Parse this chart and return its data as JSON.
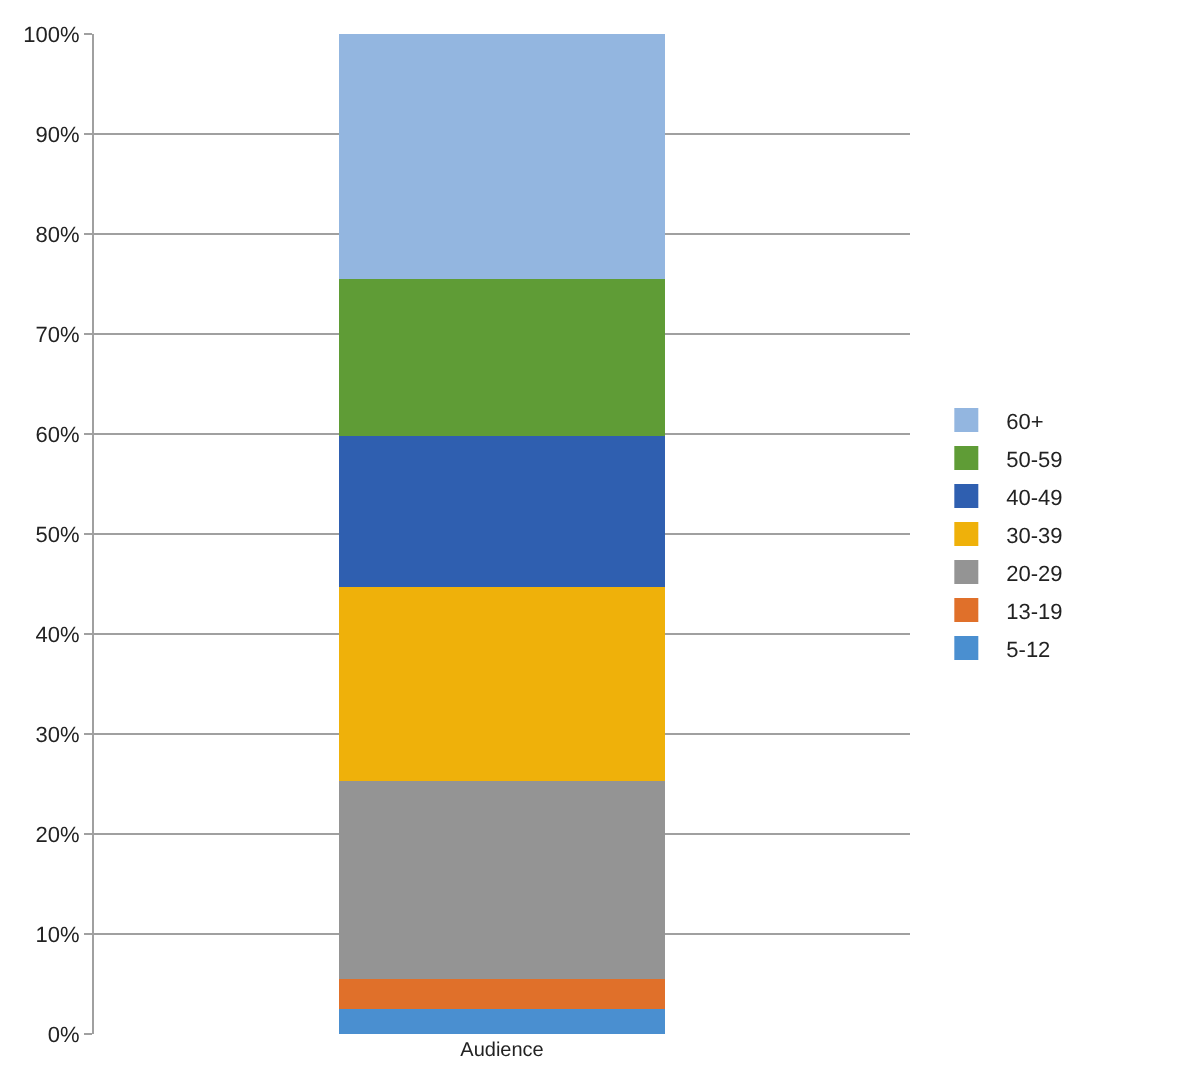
{
  "chart_data": {
    "type": "bar",
    "stacked": true,
    "categories": [
      "Audience"
    ],
    "series": [
      {
        "name": "5-12",
        "color": "#4a8fd0",
        "values": [
          2.5
        ]
      },
      {
        "name": "13-19",
        "color": "#e0702a",
        "values": [
          3.0
        ]
      },
      {
        "name": "20-29",
        "color": "#949494",
        "values": [
          19.8
        ]
      },
      {
        "name": "30-39",
        "color": "#efb10a",
        "values": [
          19.4
        ]
      },
      {
        "name": "40-49",
        "color": "#2f5fb0",
        "values": [
          15.1
        ]
      },
      {
        "name": "50-59",
        "color": "#5f9c36",
        "values": [
          15.7
        ]
      },
      {
        "name": "60+",
        "color": "#93b6e0",
        "values": [
          24.5
        ]
      }
    ],
    "ylim": [
      0,
      100
    ],
    "yticks": [
      {
        "value": 0,
        "label": "0%"
      },
      {
        "value": 10,
        "label": "10%"
      },
      {
        "value": 20,
        "label": "20%"
      },
      {
        "value": 30,
        "label": "30%"
      },
      {
        "value": 40,
        "label": "40%"
      },
      {
        "value": 50,
        "label": "50%"
      },
      {
        "value": 60,
        "label": "60%"
      },
      {
        "value": 70,
        "label": "70%"
      },
      {
        "value": 80,
        "label": "80%"
      },
      {
        "value": 90,
        "label": "90%"
      },
      {
        "value": 100,
        "label": "100%"
      }
    ],
    "grid": "y",
    "legend": "right"
  }
}
